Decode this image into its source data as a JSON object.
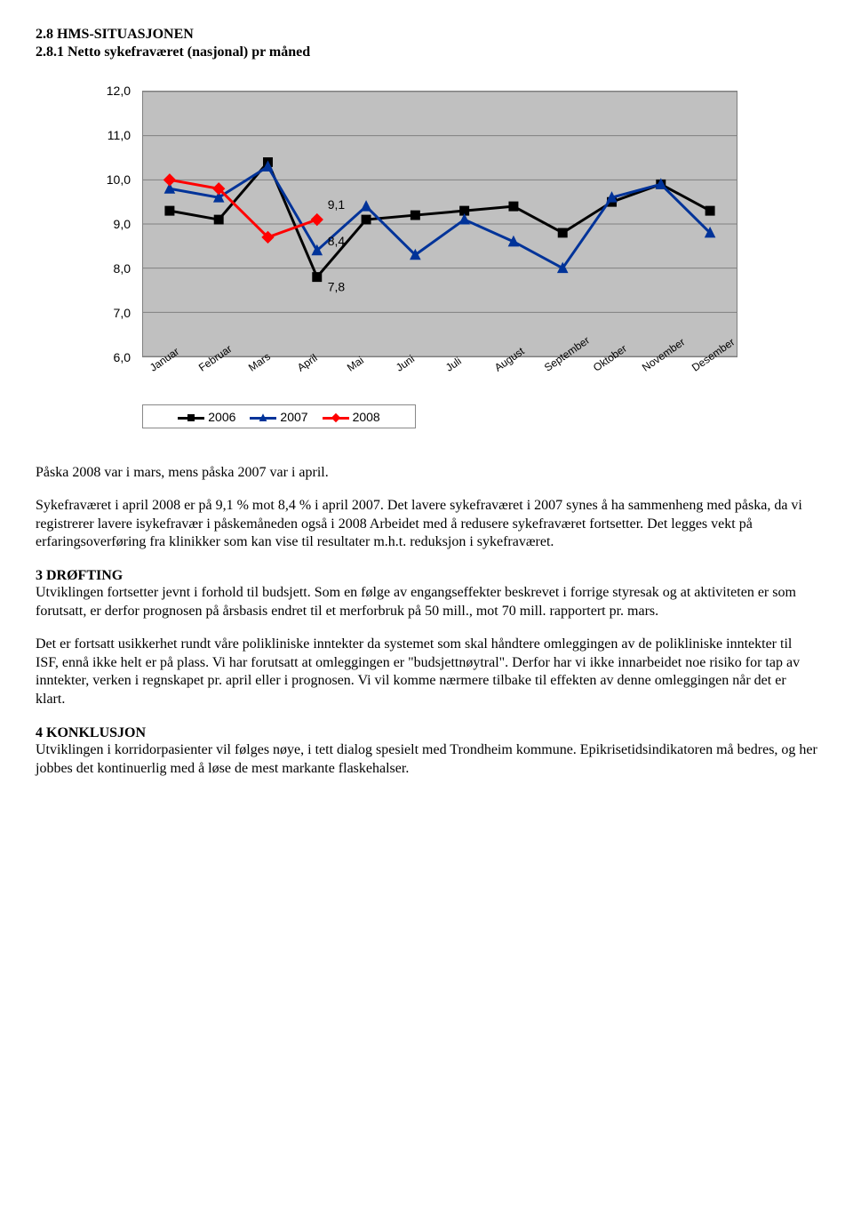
{
  "headings": {
    "h1": "2.8  HMS-SITUASJONEN",
    "h2": "2.8.1 Netto sykefraværet (nasjonal) pr måned"
  },
  "chart": {
    "type": "line",
    "ylim": [
      6.0,
      12.0
    ],
    "ytick_step": 1.0,
    "ytick_labels": [
      "6,0",
      "7,0",
      "8,0",
      "9,0",
      "10,0",
      "11,0",
      "12,0"
    ],
    "categories": [
      "Januar",
      "Februar",
      "Mars",
      "April",
      "Mai",
      "Juni",
      "Juli",
      "August",
      "September",
      "Oktober",
      "November",
      "Desember"
    ],
    "background_color": "#c0c0c0",
    "grid_color": "#808080",
    "series": [
      {
        "name": "2006",
        "color": "#000000",
        "marker": "square",
        "values": [
          9.3,
          9.1,
          10.4,
          7.8,
          9.1,
          9.2,
          9.3,
          9.4,
          8.8,
          9.5,
          9.9,
          9.3
        ]
      },
      {
        "name": "2007",
        "color": "#003399",
        "marker": "triangle",
        "values": [
          9.8,
          9.6,
          10.3,
          8.4,
          9.4,
          8.3,
          9.1,
          8.6,
          8.0,
          9.6,
          9.9,
          8.8
        ]
      },
      {
        "name": "2008",
        "color": "#ff0000",
        "marker": "diamond",
        "values": [
          10.0,
          9.8,
          8.7,
          9.1
        ]
      }
    ],
    "data_labels": [
      {
        "text": "9,1",
        "month_index": 3,
        "y": 9.1,
        "dy": -12
      },
      {
        "text": "8,4",
        "month_index": 3,
        "y": 8.4,
        "dy": -6
      },
      {
        "text": "7,8",
        "month_index": 3,
        "y": 7.8,
        "dy": 16
      }
    ],
    "label_font_family": "Arial, sans-serif",
    "label_fontsize": 14
  },
  "body": {
    "p1": "Påska 2008 var i mars, mens påska 2007 var i april.",
    "p2": "Sykefraværet i april 2008 er på 9,1 % mot 8,4 % i april 2007. Det lavere sykefraværet i 2007 synes å ha sammenheng med påska, da vi registrerer lavere isykefravær i påskemåneden også i 2008 Arbeidet med å redusere sykefraværet fortsetter. Det legges vekt på erfaringsoverføring fra klinikker som kan vise til resultater m.h.t. reduksjon i sykefraværet.",
    "s3_title": "3 DRØFTING",
    "p3a": "Utviklingen fortsetter jevnt i forhold til budsjett. Som en følge av engangseffekter beskrevet i forrige styresak og at aktiviteten er som forutsatt, er derfor prognosen på årsbasis endret til et merforbruk på 50 mill., mot 70 mill. rapportert pr. mars.",
    "p3b": "Det er fortsatt usikkerhet rundt våre polikliniske inntekter da systemet som skal håndtere omleggingen av de polikliniske inntekter til ISF, ennå ikke helt er på plass. Vi har forutsatt at omleggingen er \"budsjettnøytral\". Derfor har vi ikke innarbeidet noe risiko for tap av inntekter, verken i regnskapet pr. april eller i prognosen. Vi vil komme nærmere tilbake til effekten av denne omleggingen når det er klart.",
    "s4_title": "4 KONKLUSJON",
    "p4": "Utviklingen i korridorpasienter vil følges nøye, i tett dialog spesielt med Trondheim kommune. Epikrisetidsindikatoren må bedres, og her jobbes det kontinuerlig med å løse de mest markante flaskehalser."
  }
}
